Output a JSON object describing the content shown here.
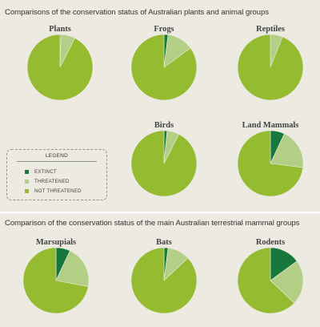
{
  "title_top": "Comparisons of the conservation status of Australian plants and animal groups",
  "title_bottom": "Comparison of the conservation status of the main Australian terrestrial mammal groups",
  "legend": {
    "title": "LEGEND",
    "items": [
      {
        "label": "EXTINCT",
        "color": "#16783a"
      },
      {
        "label": "THREATENED",
        "color": "#b3cf86"
      },
      {
        "label": "NOT THREATENED",
        "color": "#95bb30"
      }
    ]
  },
  "chart_data": [
    {
      "type": "pie",
      "title": "Plants",
      "categories": [
        "EXTINCT",
        "THREATENED",
        "NOT THREATENED"
      ],
      "values": [
        0.5,
        7,
        92.5
      ]
    },
    {
      "type": "pie",
      "title": "Frogs",
      "categories": [
        "EXTINCT",
        "THREATENED",
        "NOT THREATENED"
      ],
      "values": [
        2,
        13,
        85
      ]
    },
    {
      "type": "pie",
      "title": "Reptiles",
      "categories": [
        "EXTINCT",
        "THREATENED",
        "NOT THREATENED"
      ],
      "values": [
        0,
        6,
        94
      ]
    },
    {
      "type": "pie",
      "title": "Birds",
      "categories": [
        "EXTINCT",
        "THREATENED",
        "NOT THREATENED"
      ],
      "values": [
        1.5,
        6,
        92.5
      ]
    },
    {
      "type": "pie",
      "title": "Land Mammals",
      "categories": [
        "EXTINCT",
        "THREATENED",
        "NOT THREATENED"
      ],
      "values": [
        7,
        20,
        73
      ]
    },
    {
      "type": "pie",
      "title": "Marsupials",
      "categories": [
        "EXTINCT",
        "THREATENED",
        "NOT THREATENED"
      ],
      "values": [
        7,
        21,
        72
      ]
    },
    {
      "type": "pie",
      "title": "Bats",
      "categories": [
        "EXTINCT",
        "THREATENED",
        "NOT THREATENED"
      ],
      "values": [
        2,
        11,
        87
      ]
    },
    {
      "type": "pie",
      "title": "Rodents",
      "categories": [
        "EXTINCT",
        "THREATENED",
        "NOT THREATENED"
      ],
      "values": [
        15,
        22,
        63
      ]
    }
  ]
}
